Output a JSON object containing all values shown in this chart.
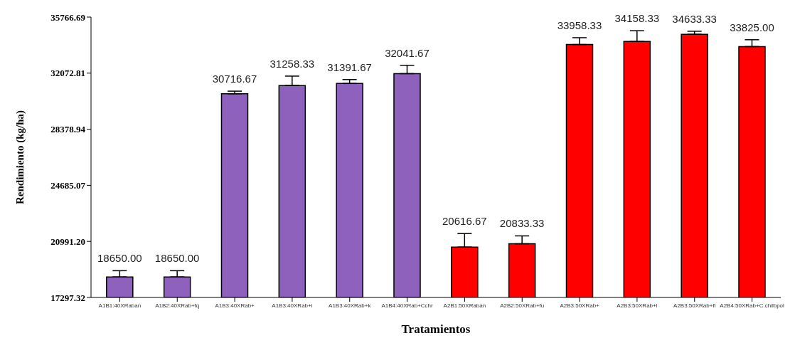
{
  "chart_data": {
    "type": "bar",
    "xlabel": "Tratamientos",
    "ylabel": "Rendimiento (kg/ha)",
    "categories": [
      "A1B1:40XRaban",
      "A1B2:40XRab+fq",
      "A1B3:40XRab+",
      "A1B3:40XRab+i",
      "A1B3:40XRab+k",
      "A1B4:40XRab+Cchr",
      "A2B1:50XRaban",
      "A2B2:50XRab+fu",
      "A2B3:50XRab+",
      "A2B3:50XRab+i",
      "A2B3:50XRab+fi",
      "A2B4:50XRab+C.chilbpol"
    ],
    "values": [
      18650.0,
      18650.0,
      30716.67,
      31258.33,
      31391.67,
      32041.67,
      20616.67,
      20833.33,
      33958.33,
      34158.33,
      34633.33,
      33825.0
    ],
    "value_labels": [
      "18650.00",
      "18650.00",
      "30716.67",
      "31258.33",
      "31391.67",
      "32041.67",
      "20616.67",
      "20833.33",
      "33958.33",
      "34158.33",
      "34633.33",
      "33825.00"
    ],
    "errors": [
      410,
      410,
      170,
      620,
      260,
      550,
      890,
      520,
      450,
      710,
      200,
      450
    ],
    "colors": [
      "#8e62bc",
      "#8e62bc",
      "#8e62bc",
      "#8e62bc",
      "#8e62bc",
      "#8e62bc",
      "#ff0000",
      "#ff0000",
      "#ff0000",
      "#ff0000",
      "#ff0000",
      "#ff0000"
    ],
    "ylim": [
      17297.32,
      35766.69
    ],
    "yticks": [
      17297.32,
      {
        "value": 20991.2,
        "label": "20991.20"
      },
      24685.07,
      28378.94,
      32072.81,
      35766.69
    ],
    "data_labels": true,
    "grid": false,
    "legend": false
  }
}
